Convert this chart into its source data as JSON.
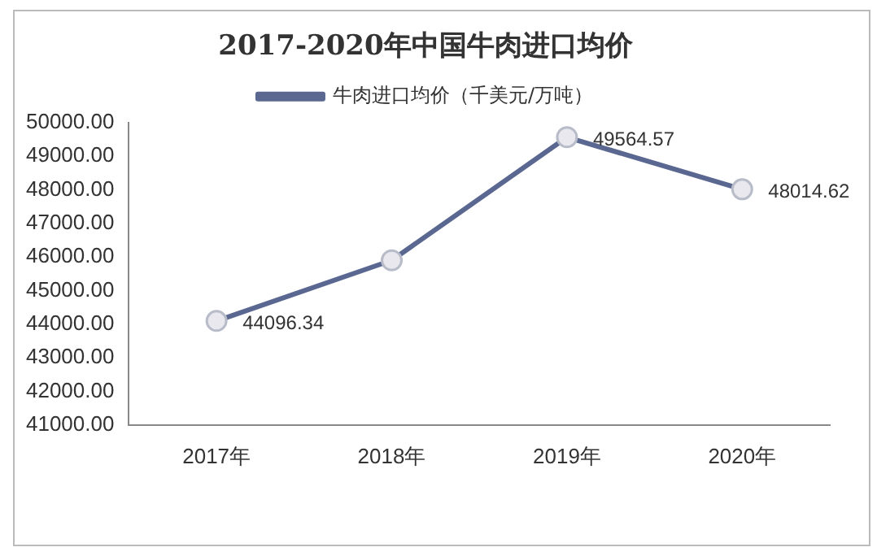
{
  "chart_data": {
    "type": "line",
    "title": "2017-2020年中国牛肉进口均价",
    "categories": [
      "2017年",
      "2018年",
      "2019年",
      "2020年"
    ],
    "series": [
      {
        "name": "牛肉进口均价（千美元/万吨）",
        "color": "#5a6891",
        "values": [
          44096.34,
          45900,
          49564.57,
          48014.62
        ],
        "value_labels": [
          "44096.34",
          null,
          "49564.57",
          "48014.62"
        ]
      }
    ],
    "ylim": [
      41000,
      50000
    ],
    "yticks": [
      {
        "value": 41000,
        "label": "41000.00"
      },
      {
        "value": 42000,
        "label": "42000.00"
      },
      {
        "value": 43000,
        "label": "43000.00"
      },
      {
        "value": 44000,
        "label": "44000.00"
      },
      {
        "value": 45000,
        "label": "45000.00"
      },
      {
        "value": 46000,
        "label": "46000.00"
      },
      {
        "value": 47000,
        "label": "47000.00"
      },
      {
        "value": 48000,
        "label": "48000.00"
      },
      {
        "value": 49000,
        "label": "49000.00"
      },
      {
        "value": 50000,
        "label": "50000.00"
      }
    ],
    "grid": false,
    "legend": "top",
    "marker": "circle",
    "line_style": "solid"
  }
}
